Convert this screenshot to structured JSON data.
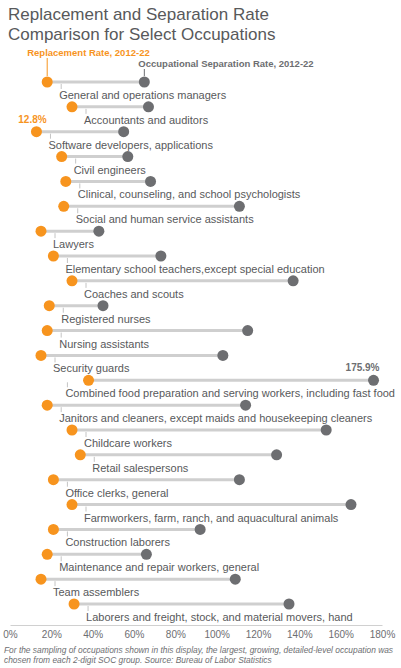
{
  "chart_data": {
    "type": "dot",
    "title": "Replacement and Separation Rate Comparison for Select Occupations",
    "note": "For the sampling of occupations shown in this display, the largest, growing, detailed-level occupation was chosen from each 2-digit SOC group. Source: Bureau of Labor Statistics",
    "orientation": "horizontal",
    "grid": false,
    "categories": [
      "General and operations managers",
      "Accountants and auditors",
      "Software developers, applications",
      "Civil engineers",
      "Clinical, counseling, and school psychologists",
      "Social and human service assistants",
      "Lawyers",
      "Elementary school teachers,except special education",
      "Coaches and scouts",
      "Registered nurses",
      "Nursing assistants",
      "Security guards",
      "Combined food preparation and serving workers, including fast food",
      "Janitors and cleaners, except maids and housekeeping cleaners",
      "Childcare workers",
      "Retail salespersons",
      "Office clerks, general",
      "Farmworkers, farm, ranch, and aquacultural animals",
      "Construction laborers",
      "Maintenance and repair workers, general",
      "Team assemblers",
      "Laborers and freight, stock, and material movers, hand"
    ],
    "series": [
      {
        "name": "Replacement Rate, 2012-22",
        "color": "#f7941e",
        "values": [
          18,
          30,
          12.8,
          25,
          27,
          26,
          15,
          21,
          30,
          19,
          18,
          15,
          38,
          18,
          30,
          34,
          21,
          30,
          21,
          18,
          15,
          31
        ],
        "value_labels": [
          null,
          null,
          "12.8%",
          null,
          null,
          null,
          null,
          null,
          null,
          null,
          null,
          null,
          null,
          null,
          null,
          null,
          null,
          null,
          null,
          null,
          null,
          null
        ]
      },
      {
        "name": "Occupational Separation Rate, 2012-22",
        "color": "#6d6e71",
        "values": [
          65,
          67,
          55,
          57,
          68,
          111,
          43,
          73,
          137,
          45,
          115,
          103,
          175.9,
          114,
          153,
          129,
          111,
          165,
          92,
          66,
          109,
          135
        ],
        "value_labels": [
          null,
          null,
          null,
          null,
          null,
          null,
          null,
          null,
          null,
          null,
          null,
          null,
          "175.9%",
          null,
          null,
          null,
          null,
          null,
          null,
          null,
          null,
          null
        ]
      }
    ],
    "xlim": [
      0,
      180
    ],
    "xticks": [
      {
        "value": 0,
        "label": "0%"
      },
      {
        "value": 20,
        "label": "20%"
      },
      {
        "value": 40,
        "label": "40%"
      },
      {
        "value": 60,
        "label": "60%"
      },
      {
        "value": 80,
        "label": "80%"
      },
      {
        "value": 100,
        "label": "100%"
      },
      {
        "value": 120,
        "label": "120%"
      },
      {
        "value": 140,
        "label": "140%"
      },
      {
        "value": 160,
        "label": "160%"
      },
      {
        "value": 180,
        "label": "180%"
      }
    ]
  }
}
